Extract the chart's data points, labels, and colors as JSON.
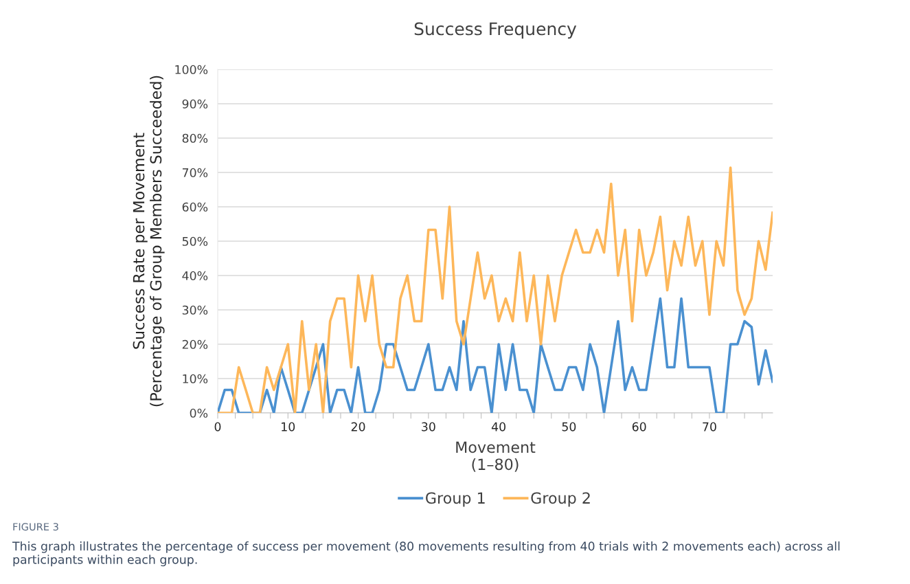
{
  "chart_data": {
    "type": "line",
    "title": "Success Frequency",
    "xlabel": "Movement\n(1–80)",
    "ylabel": "Success Rate per Movement\n(Percentage of Group Members Succeeded)",
    "x": [
      0,
      1,
      2,
      3,
      4,
      5,
      6,
      7,
      8,
      9,
      10,
      11,
      12,
      13,
      14,
      15,
      16,
      17,
      18,
      19,
      20,
      21,
      22,
      23,
      24,
      25,
      26,
      27,
      28,
      29,
      30,
      31,
      32,
      33,
      34,
      35,
      36,
      37,
      38,
      39,
      40,
      41,
      42,
      43,
      44,
      45,
      46,
      47,
      48,
      49,
      50,
      51,
      52,
      53,
      54,
      55,
      56,
      57,
      58,
      59,
      60,
      61,
      62,
      63,
      64,
      65,
      66,
      67,
      68,
      69,
      70,
      71,
      72,
      73,
      74,
      75,
      76,
      77,
      78,
      79
    ],
    "series": [
      {
        "name": "Group 1",
        "color": "#4a90d0",
        "values": [
          0,
          6.7,
          6.7,
          0,
          0,
          0,
          0,
          6.7,
          0,
          13.3,
          6.7,
          0,
          0,
          6.7,
          13.3,
          20,
          0,
          6.7,
          6.7,
          0,
          13.3,
          0,
          0,
          6.7,
          20,
          20,
          13.3,
          6.7,
          6.7,
          13.3,
          20,
          6.7,
          6.7,
          13.3,
          6.7,
          26.7,
          6.7,
          13.3,
          13.3,
          0,
          20,
          6.7,
          20,
          6.7,
          6.7,
          0,
          20,
          13.3,
          6.7,
          6.7,
          13.3,
          13.3,
          6.7,
          20,
          13.3,
          0,
          13.3,
          26.7,
          6.7,
          13.3,
          6.7,
          6.7,
          20,
          33.3,
          13.3,
          13.3,
          33.3,
          13.3,
          13.3,
          13.3,
          13.3,
          0,
          0,
          20,
          20,
          26.7,
          25,
          8.3,
          18.2,
          9.1
        ]
      },
      {
        "name": "Group 2",
        "color": "#fdb75a",
        "values": [
          0,
          0,
          0,
          13.3,
          6.7,
          0,
          0,
          13.3,
          6.7,
          13.3,
          20,
          0,
          26.7,
          6.7,
          20,
          0,
          26.7,
          33.3,
          33.3,
          13.3,
          40,
          26.7,
          40,
          20,
          13.3,
          13.3,
          33.3,
          40,
          26.7,
          26.7,
          53.3,
          53.3,
          33.3,
          60,
          26.7,
          20,
          33.3,
          46.7,
          33.3,
          40,
          26.7,
          33.3,
          26.7,
          46.7,
          26.7,
          40,
          20,
          40,
          26.7,
          40,
          46.7,
          53.3,
          46.7,
          46.7,
          53.3,
          46.7,
          66.7,
          40,
          53.3,
          26.7,
          53.3,
          40,
          46.7,
          57.1,
          35.7,
          50,
          42.9,
          57.1,
          42.9,
          50,
          28.6,
          50,
          42.9,
          71.4,
          35.7,
          28.6,
          33.3,
          50,
          41.7,
          58.3
        ]
      }
    ],
    "xlim": [
      0,
      79
    ],
    "xticks": [
      0,
      {
        "value": 2.5,
        "label": null
      },
      {
        "value": 5,
        "label": null
      },
      {
        "value": 7.5,
        "label": null
      },
      10,
      {
        "value": 12.5,
        "label": null
      },
      {
        "value": 15,
        "label": null
      },
      {
        "value": 17.5,
        "label": null
      },
      20,
      {
        "value": 22.5,
        "label": null
      },
      {
        "value": 25,
        "label": null
      },
      {
        "value": 27.5,
        "label": null
      },
      30,
      {
        "value": 32.5,
        "label": null
      },
      {
        "value": 35,
        "label": null
      },
      {
        "value": 37.5,
        "label": null
      },
      40,
      {
        "value": 42.5,
        "label": null
      },
      {
        "value": 45,
        "label": null
      },
      {
        "value": 47.5,
        "label": null
      },
      50,
      {
        "value": 52.5,
        "label": null
      },
      {
        "value": 55,
        "label": null
      },
      {
        "value": 57.5,
        "label": null
      },
      60,
      {
        "value": 62.5,
        "label": null
      },
      {
        "value": 65,
        "label": null
      },
      {
        "value": 67.5,
        "label": null
      },
      70,
      {
        "value": 72.5,
        "label": null
      },
      {
        "value": 75,
        "label": null
      },
      {
        "value": 77.5,
        "label": null
      }
    ],
    "ylim": [
      0,
      100
    ],
    "yticks": [
      {
        "value": 0,
        "label": "0%"
      },
      {
        "value": 10,
        "label": "10%"
      },
      {
        "value": 20,
        "label": "20%"
      },
      {
        "value": 30,
        "label": "30%"
      },
      {
        "value": 40,
        "label": "40%"
      },
      {
        "value": 50,
        "label": "50%"
      },
      {
        "value": 60,
        "label": "60%"
      },
      {
        "value": 70,
        "label": "70%"
      },
      {
        "value": 80,
        "label": "80%"
      },
      {
        "value": 90,
        "label": "90%"
      },
      {
        "value": 100,
        "label": "100%"
      }
    ],
    "grid": "y",
    "legend": "bottom",
    "marker": "none",
    "line_style": "solid",
    "annotations": [
      "FIGURE 3",
      "This graph illustrates the percentage of success per movement (80 movements resulting from 40 trials with 2 movements each) across all participants within each group."
    ]
  }
}
